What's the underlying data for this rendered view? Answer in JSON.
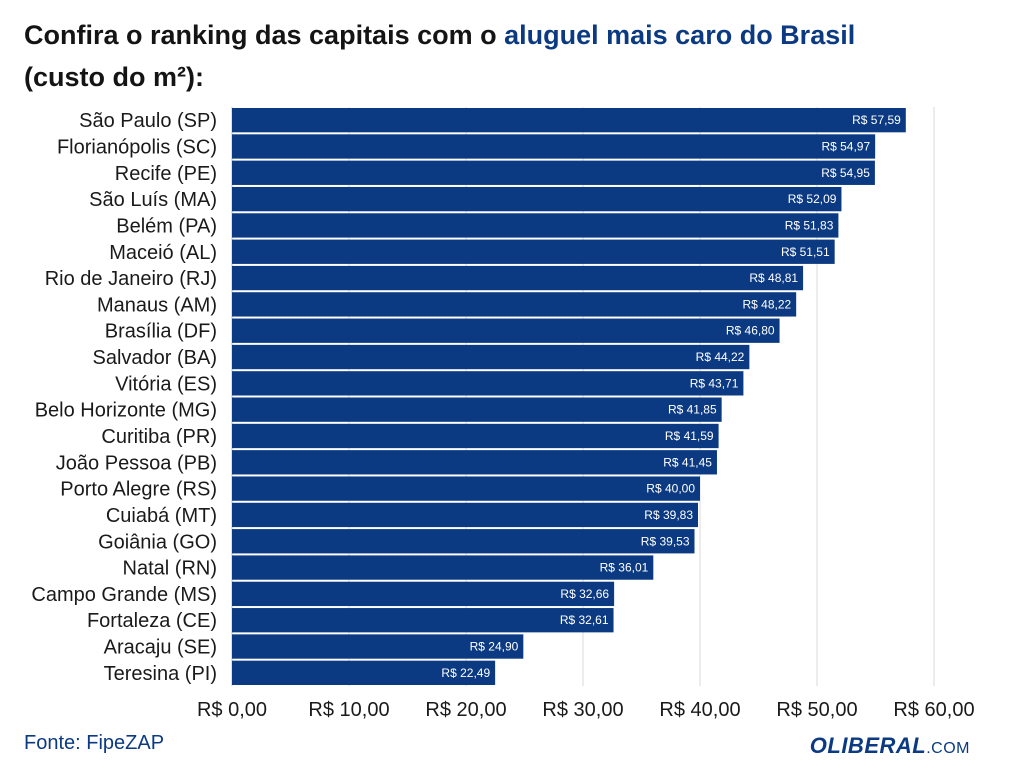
{
  "title": {
    "prefix": "Confira o ranking das capitais com o ",
    "highlight": "aluguel mais caro do Brasil",
    "suffix": "(custo do m²):"
  },
  "source": "Fonte: FipeZAP",
  "logo": {
    "name": "OLIBERAL",
    "domain": ".COM"
  },
  "colors": {
    "bar": "#0b3a82",
    "highlight": "#0b3a82",
    "grid": "#d9d9d9"
  },
  "chart_data": {
    "type": "bar",
    "orientation": "horizontal",
    "categories": [
      "São Paulo (SP)",
      "Florianópolis (SC)",
      "Recife (PE)",
      "São Luís (MA)",
      "Belém (PA)",
      "Maceió (AL)",
      "Rio de Janeiro (RJ)",
      "Manaus (AM)",
      "Brasília (DF)",
      "Salvador (BA)",
      "Vitória (ES)",
      "Belo Horizonte (MG)",
      "Curitiba (PR)",
      "João Pessoa (PB)",
      "Porto Alegre (RS)",
      "Cuiabá (MT)",
      "Goiânia (GO)",
      "Natal (RN)",
      "Campo Grande (MS)",
      "Fortaleza (CE)",
      "Aracaju (SE)",
      "Teresina (PI)"
    ],
    "values": [
      57.59,
      54.97,
      54.95,
      52.09,
      51.83,
      51.51,
      48.81,
      48.22,
      46.8,
      44.22,
      43.71,
      41.85,
      41.59,
      41.45,
      40.0,
      39.83,
      39.53,
      36.01,
      32.66,
      32.61,
      24.9,
      22.49
    ],
    "value_labels": [
      "R$ 57,59",
      "R$ 54,97",
      "R$ 54,95",
      "R$ 52,09",
      "R$ 51,83",
      "R$ 51,51",
      "R$ 48,81",
      "R$ 48,22",
      "R$ 46,80",
      "R$ 44,22",
      "R$ 43,71",
      "R$ 41,85",
      "R$ 41,59",
      "R$ 41,45",
      "R$ 40,00",
      "R$ 39,83",
      "R$ 39,53",
      "R$ 36,01",
      "R$ 32,66",
      "R$ 32,61",
      "R$ 24,90",
      "R$ 22,49"
    ],
    "xlim": [
      0,
      60
    ],
    "xticks": [
      0,
      10,
      20,
      30,
      40,
      50,
      60
    ],
    "xtick_labels": [
      "R$ 0,00",
      "R$ 10,00",
      "R$ 20,00",
      "R$ 30,00",
      "R$ 40,00",
      "R$ 50,00",
      "R$ 60,00"
    ],
    "grid": true,
    "legend": false
  }
}
